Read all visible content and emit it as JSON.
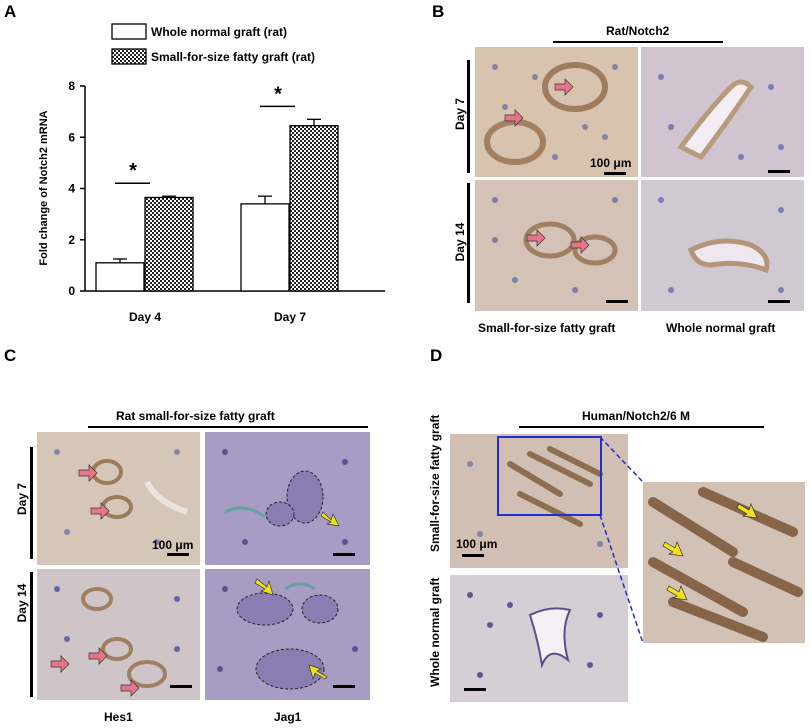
{
  "panels": {
    "A": "A",
    "B": "B",
    "C": "C",
    "D": "D"
  },
  "chart_data": {
    "type": "bar",
    "categories": [
      "Day 4",
      "Day 7"
    ],
    "series": [
      {
        "name": "Whole normal graft (rat)",
        "values": [
          1.1,
          3.4
        ],
        "errors": [
          0.15,
          0.3
        ],
        "fill": "#ffffff"
      },
      {
        "name": "Small-for-size fatty graft (rat)",
        "values": [
          3.65,
          6.45
        ],
        "errors": [
          0.05,
          0.25
        ],
        "fill": "checker"
      }
    ],
    "ylabel": "Fold change of Notch2 mRNA",
    "xlabel": "",
    "ylim": [
      0,
      8
    ],
    "yticks": [
      "0",
      "2",
      "4",
      "6",
      "8"
    ],
    "significance": [
      "*",
      "*"
    ],
    "legend_position": "top-left"
  },
  "panelB": {
    "title": "Rat/Notch2",
    "rows": [
      "Day 7",
      "Day 14"
    ],
    "columns": [
      "Small-for-size fatty graft",
      "Whole normal graft"
    ],
    "scale_label": "100 μm"
  },
  "panelC": {
    "title": "Rat small-for-size  fatty graft",
    "rows": [
      "Day 7",
      "Day 14"
    ],
    "columns": [
      "Hes1",
      "Jag1"
    ],
    "scale_label": "100 μm"
  },
  "panelD": {
    "title": "Human/Notch2/6 M",
    "rows": [
      "Small-for-size fatty graft",
      "Whole normal graft"
    ],
    "scale_label": "100 μm"
  },
  "colors": {
    "arrow_pink": "#e8758a",
    "arrow_yellow": "#f2e21c",
    "zoom_box": "#1f2fd0"
  }
}
